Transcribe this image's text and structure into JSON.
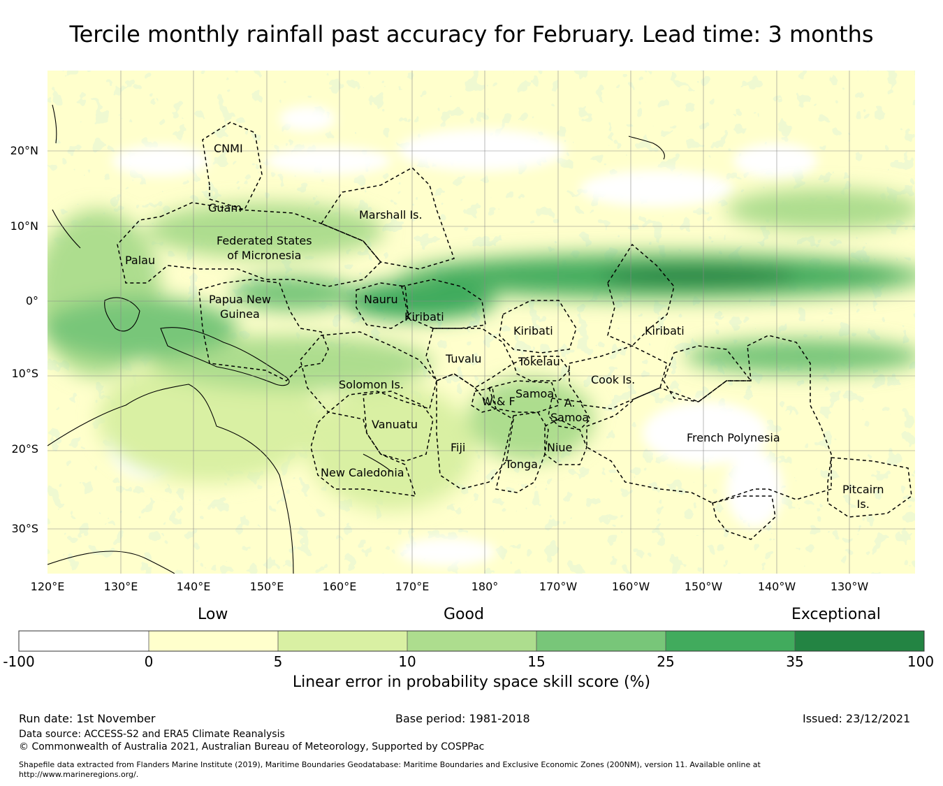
{
  "title": "Tercile monthly rainfall past accuracy for February. Lead time: 3 months",
  "latitude_labels": [
    "20°N",
    "10°N",
    "0°",
    "10°S",
    "20°S",
    "30°S"
  ],
  "longitude_labels": [
    "120°E",
    "130°E",
    "140°E",
    "150°E",
    "160°E",
    "170°E",
    "180°",
    "170°W",
    "160°W",
    "150°W",
    "140°W",
    "130°W"
  ],
  "regions": [
    {
      "name": "cnmi",
      "label": "CNMI"
    },
    {
      "name": "guam",
      "label": "Guam"
    },
    {
      "name": "marshall-islands",
      "label": "Marshall Is."
    },
    {
      "name": "federated-states",
      "label": "Federated States\nof Micronesia"
    },
    {
      "name": "palau",
      "label": "Palau"
    },
    {
      "name": "nauru",
      "label": "Nauru"
    },
    {
      "name": "papua-new-guinea",
      "label": "Papua New\nGuinea"
    },
    {
      "name": "kiribati-west",
      "label": "Kiribati"
    },
    {
      "name": "kiribati-central",
      "label": "Kiribati"
    },
    {
      "name": "kiribati-east",
      "label": "Kiribati"
    },
    {
      "name": "tuvalu",
      "label": "Tuvalu"
    },
    {
      "name": "tokelau",
      "label": "Tokelau"
    },
    {
      "name": "cook-islands",
      "label": "Cook Is."
    },
    {
      "name": "solomon-islands",
      "label": "Solomon Is."
    },
    {
      "name": "samoa",
      "label": "Samoa"
    },
    {
      "name": "wallis-futuna",
      "label": "W & F"
    },
    {
      "name": "american-samoa",
      "label": "A.\nSamoa"
    },
    {
      "name": "vanuatu",
      "label": "Vanuatu"
    },
    {
      "name": "fiji",
      "label": "Fiji"
    },
    {
      "name": "niue",
      "label": "Niue"
    },
    {
      "name": "tonga",
      "label": "Tonga"
    },
    {
      "name": "french-polynesia",
      "label": "French Polynesia"
    },
    {
      "name": "new-caledonia",
      "label": "New Caledonia"
    },
    {
      "name": "pitcairn",
      "label": "Pitcairn\nIs."
    }
  ],
  "colorbar": {
    "category_labels": [
      "Low",
      "Good",
      "Exceptional"
    ],
    "ticks": [
      "-100",
      "0",
      "5",
      "10",
      "15",
      "25",
      "35",
      "100"
    ],
    "colors": [
      "#ffffff",
      "#ffffcc",
      "#d9f0a3",
      "#addd8e",
      "#78c679",
      "#41ab5d",
      "#238443"
    ],
    "title": "Linear error in probability space skill score (%)"
  },
  "map_colors": {
    "low": "#ffffff",
    "yellow": "#ffffcc",
    "light_green": "#d9f0a3",
    "green": "#addd8e",
    "mid_green": "#78c679",
    "dark_green": "#41ab5d",
    "darkest_green": "#238443"
  },
  "footer": {
    "run_date": "Run date: 1st November",
    "base_period": "Base period: 1981-2018",
    "issued": "Issued: 23/12/2021",
    "data_source": "Data source: ACCESS-S2 and ERA5 Climate Reanalysis",
    "copyright": "© Commonwealth of Australia 2021, Australian Bureau of Meteorology, Supported by COSPPac",
    "shapefile_note": "Shapefile data extracted from Flanders Marine Institute (2019), Maritime Boundaries Geodatabase: Maritime Boundaries and Exclusive Economic Zones (200NM), version 11. Available online at http://www.marineregions.org/."
  }
}
